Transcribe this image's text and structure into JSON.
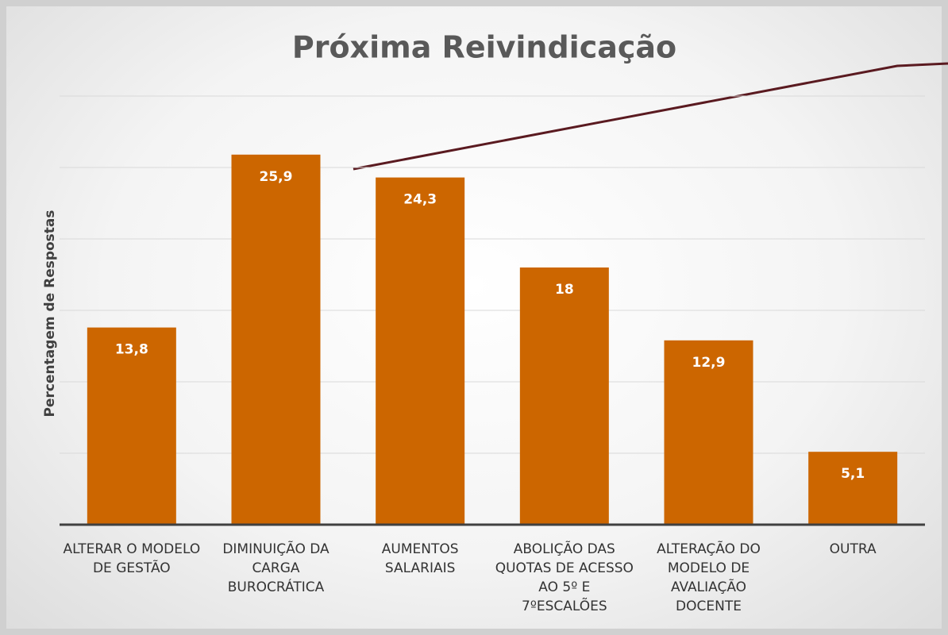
{
  "chart_data": {
    "type": "bar",
    "title": "Próxima Reivindicação",
    "y_label": "Percentagem de Respostas",
    "categories": [
      "ALTERAR O MODELO DE GESTÃO",
      "DIMINUIÇÃO DA CARGA BUROCRÁTICA",
      "AUMENTOS SALARIAIS",
      "ABOLIÇÃO DAS QUOTAS DE ACESSO AO 5º E 7ºESCALÕES",
      "ALTERAÇÃO DO MODELO DE AVALIAÇÃO DOCENTE",
      "OUTRA"
    ],
    "values": [
      13.8,
      25.9,
      24.3,
      18,
      12.9,
      5.1
    ],
    "value_labels": [
      "13,8",
      "25,9",
      "24,3",
      "18",
      "12,9",
      "5,1"
    ],
    "color": "#cc6600",
    "ylim": [
      0,
      30
    ],
    "yticks": [
      0,
      5,
      10,
      15,
      20,
      25,
      30
    ],
    "grid": true
  }
}
